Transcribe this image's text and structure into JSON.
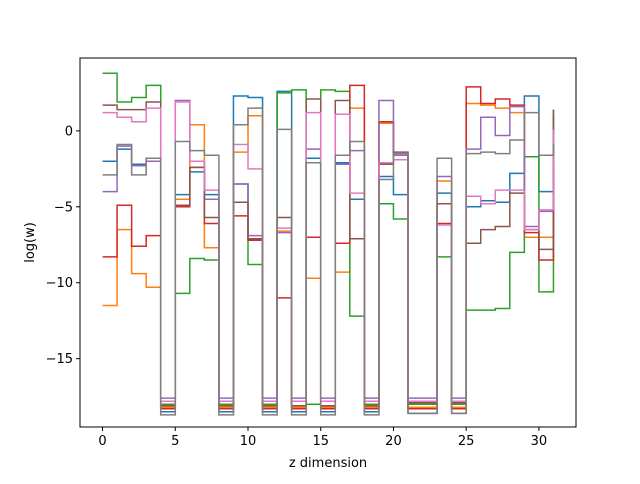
{
  "chart_data": {
    "type": "line",
    "step": "post",
    "xlabel": "z dimension",
    "ylabel": "log(w)",
    "xlim": [
      -1.55,
      32.55
    ],
    "ylim": [
      -19.5,
      4.8
    ],
    "xticks": [
      0,
      5,
      10,
      15,
      20,
      25,
      30
    ],
    "yticks": [
      0,
      -5,
      -10,
      -15
    ],
    "x": [
      0,
      1,
      2,
      3,
      4,
      5,
      6,
      7,
      8,
      9,
      10,
      11,
      12,
      13,
      14,
      15,
      16,
      17,
      18,
      19,
      20,
      21,
      22,
      23,
      24,
      25,
      26,
      27,
      28,
      29,
      30,
      31
    ],
    "series": [
      {
        "color": "#1f77b4",
        "values": [
          -2.0,
          -1.2,
          -2.2,
          -1.8,
          -18.5,
          -4.2,
          -2.7,
          -4.2,
          -18.5,
          2.3,
          2.2,
          -18.5,
          2.6,
          -18.5,
          -1.8,
          -18.5,
          -2.1,
          -4.5,
          -18.5,
          -3.0,
          -4.2,
          -18.6,
          -18.6,
          -4.1,
          -18.6,
          -5.0,
          -4.6,
          -4.7,
          -2.8,
          2.3,
          -4.0,
          -2.5
        ]
      },
      {
        "color": "#ff7f0e",
        "values": [
          -11.5,
          -6.5,
          -9.4,
          -10.3,
          -18.2,
          -4.5,
          0.4,
          -7.7,
          -18.2,
          -1.4,
          1.0,
          -18.2,
          -6.6,
          -18.2,
          -9.7,
          -18.2,
          -9.3,
          1.5,
          -18.2,
          0.5,
          -1.6,
          -18.2,
          -18.2,
          -3.3,
          -18.2,
          1.8,
          1.7,
          1.5,
          1.2,
          -7.0,
          -7.0,
          -3.5
        ]
      },
      {
        "color": "#2ca02c",
        "values": [
          3.8,
          1.9,
          2.2,
          3.0,
          -18.0,
          -10.7,
          -8.4,
          -8.5,
          -18.0,
          -3.5,
          -8.8,
          -18.0,
          2.5,
          2.7,
          -18.0,
          2.7,
          2.6,
          -12.2,
          -18.0,
          -4.8,
          -5.8,
          -18.0,
          -18.0,
          -8.3,
          -18.0,
          -11.8,
          -11.8,
          -11.7,
          -8.0,
          -1.7,
          -10.6,
          1.0
        ]
      },
      {
        "color": "#d62728",
        "values": [
          -8.3,
          -4.9,
          -7.6,
          -6.9,
          -18.3,
          -5.0,
          -2.4,
          -6.1,
          -18.3,
          -5.6,
          -7.2,
          -18.3,
          -11.0,
          -18.3,
          -7.0,
          -18.3,
          -7.4,
          3.0,
          -18.3,
          0.6,
          -1.6,
          -18.3,
          -18.3,
          -6.1,
          -18.3,
          2.9,
          1.8,
          2.1,
          1.7,
          -6.7,
          -8.5,
          -1.6
        ]
      },
      {
        "color": "#9467bd",
        "values": [
          -4.0,
          -1.0,
          -2.3,
          -2.0,
          -17.6,
          2.0,
          -2.0,
          -4.5,
          -17.6,
          -3.5,
          -6.9,
          -17.6,
          -6.7,
          -17.6,
          -1.2,
          -17.6,
          -2.2,
          -1.3,
          -17.6,
          2.0,
          -1.6,
          -17.6,
          -17.6,
          -3.0,
          -17.6,
          -1.2,
          0.9,
          -0.3,
          1.6,
          -6.3,
          -5.3,
          1.4
        ]
      },
      {
        "color": "#8c564b",
        "values": [
          1.7,
          1.4,
          1.4,
          1.9,
          -18.1,
          -4.9,
          -2.4,
          -5.7,
          -18.1,
          -4.7,
          -7.1,
          -18.1,
          -5.7,
          -18.1,
          2.1,
          -18.1,
          2.0,
          -7.1,
          -18.1,
          -2.2,
          -1.4,
          -17.9,
          -17.9,
          -4.8,
          -17.9,
          -7.4,
          -6.5,
          -6.3,
          -4.1,
          -6.5,
          -7.8,
          1.4
        ]
      },
      {
        "color": "#e377c2",
        "values": [
          1.2,
          0.9,
          0.6,
          1.5,
          -17.8,
          1.9,
          -2.0,
          -3.9,
          -17.8,
          -0.9,
          -2.5,
          -17.8,
          -6.4,
          -17.8,
          1.2,
          -17.8,
          1.1,
          -4.1,
          -17.8,
          -2.1,
          -1.9,
          -17.8,
          -17.8,
          -6.2,
          -17.8,
          -4.3,
          -4.8,
          -3.9,
          -3.9,
          -6.5,
          -5.2,
          0.1
        ]
      },
      {
        "color": "#7f7f7f",
        "values": [
          -2.9,
          -0.9,
          -2.9,
          -1.8,
          -18.7,
          -0.7,
          -1.3,
          -1.6,
          -18.7,
          0.4,
          1.5,
          -18.7,
          0.1,
          -18.7,
          -2.1,
          -18.7,
          -1.6,
          -0.7,
          -18.7,
          -3.2,
          -1.5,
          -18.6,
          -18.6,
          -1.8,
          -18.6,
          -1.5,
          -1.4,
          -1.5,
          -0.6,
          1.2,
          -1.6,
          -0.9
        ]
      }
    ]
  }
}
